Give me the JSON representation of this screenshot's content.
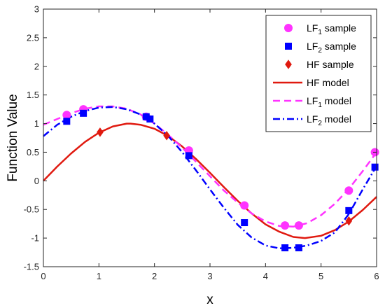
{
  "chart_data": {
    "type": "line",
    "xlabel": "x",
    "ylabel": "Function Value",
    "xlim": [
      0,
      6
    ],
    "ylim": [
      -1.5,
      3
    ],
    "xticks": [
      0,
      1,
      2,
      3,
      4,
      5,
      6
    ],
    "yticks": [
      -1.5,
      -1,
      -0.5,
      0,
      0.5,
      1,
      1.5,
      2,
      2.5,
      3
    ],
    "xtick_labels": [
      "0",
      "1",
      "2",
      "3",
      "4",
      "5",
      "6"
    ],
    "ytick_labels": [
      "-1.5",
      "-1",
      "-0.5",
      "0",
      "0.5",
      "1",
      "1.5",
      "2",
      "2.5",
      "3"
    ],
    "grid": false,
    "legend_position": "top-right",
    "series": [
      {
        "name": "LF1 sample",
        "legend_main": "LF",
        "legend_sub": "1",
        "legend_tail": " sample",
        "kind": "marker",
        "marker": "circle",
        "color": "#ff33ff",
        "x": [
          0.42,
          0.72,
          1.85,
          2.62,
          3.62,
          4.35,
          4.6,
          5.5,
          5.97
        ],
        "y": [
          1.15,
          1.25,
          1.12,
          0.53,
          -0.43,
          -0.78,
          -0.78,
          -0.17,
          0.5
        ]
      },
      {
        "name": "LF2 sample",
        "legend_main": "LF",
        "legend_sub": "2",
        "legend_tail": " sample",
        "kind": "marker",
        "marker": "square",
        "color": "#0000ff",
        "x": [
          0.42,
          0.72,
          1.85,
          1.92,
          2.62,
          3.62,
          4.35,
          4.6,
          5.5,
          5.97
        ],
        "y": [
          1.04,
          1.18,
          1.12,
          1.08,
          0.44,
          -0.73,
          -1.17,
          -1.17,
          -0.52,
          0.24
        ]
      },
      {
        "name": "HF sample",
        "legend_main": "HF sample",
        "legend_sub": "",
        "legend_tail": "",
        "kind": "marker",
        "marker": "diamond",
        "color": "#e0190f",
        "x": [
          1.02,
          2.22,
          5.5
        ],
        "y": [
          0.85,
          0.79,
          -0.7
        ]
      },
      {
        "name": "HF model",
        "legend_main": "HF model",
        "legend_sub": "",
        "legend_tail": "",
        "kind": "line",
        "dash": "",
        "color": "#e0190f",
        "x": [
          0,
          0.25,
          0.5,
          0.75,
          1,
          1.25,
          1.5,
          1.57,
          1.75,
          2,
          2.25,
          2.5,
          2.75,
          3,
          3.25,
          3.5,
          3.75,
          4,
          4.25,
          4.5,
          4.71,
          5,
          5.25,
          5.5,
          5.75,
          6
        ],
        "y": [
          0,
          0.25,
          0.48,
          0.68,
          0.84,
          0.95,
          1.0,
          1.0,
          0.98,
          0.91,
          0.78,
          0.6,
          0.38,
          0.14,
          -0.11,
          -0.35,
          -0.57,
          -0.76,
          -0.89,
          -0.98,
          -1.0,
          -0.96,
          -0.86,
          -0.71,
          -0.51,
          -0.28
        ]
      },
      {
        "name": "LF1 model",
        "legend_main": "LF",
        "legend_sub": "1",
        "legend_tail": " model",
        "kind": "line",
        "dash": "10 6",
        "color": "#ff33ff",
        "x": [
          0,
          0.25,
          0.5,
          0.75,
          1,
          1.25,
          1.5,
          1.75,
          2,
          2.25,
          2.5,
          2.75,
          3,
          3.25,
          3.5,
          3.75,
          4,
          4.25,
          4.5,
          4.75,
          5,
          5.25,
          5.5,
          5.75,
          6
        ],
        "y": [
          0.98,
          1.08,
          1.18,
          1.26,
          1.3,
          1.3,
          1.26,
          1.16,
          1.0,
          0.8,
          0.58,
          0.33,
          0.08,
          -0.17,
          -0.38,
          -0.57,
          -0.71,
          -0.79,
          -0.8,
          -0.74,
          -0.6,
          -0.4,
          -0.14,
          0.17,
          0.5
        ]
      },
      {
        "name": "LF2 model",
        "legend_main": "LF",
        "legend_sub": "2",
        "legend_tail": " model",
        "kind": "line",
        "dash": "10 4 2 4",
        "color": "#0000ff",
        "x": [
          0,
          0.25,
          0.5,
          0.75,
          1,
          1.25,
          1.5,
          1.75,
          2,
          2.25,
          2.5,
          2.75,
          3,
          3.25,
          3.5,
          3.75,
          4,
          4.25,
          4.5,
          4.75,
          5,
          5.25,
          5.5,
          5.75,
          6
        ],
        "y": [
          0.78,
          0.98,
          1.12,
          1.22,
          1.28,
          1.29,
          1.25,
          1.16,
          1.0,
          0.78,
          0.5,
          0.18,
          -0.15,
          -0.47,
          -0.77,
          -0.99,
          -1.13,
          -1.18,
          -1.17,
          -1.13,
          -1.05,
          -0.9,
          -0.58,
          -0.15,
          0.26
        ]
      }
    ]
  }
}
